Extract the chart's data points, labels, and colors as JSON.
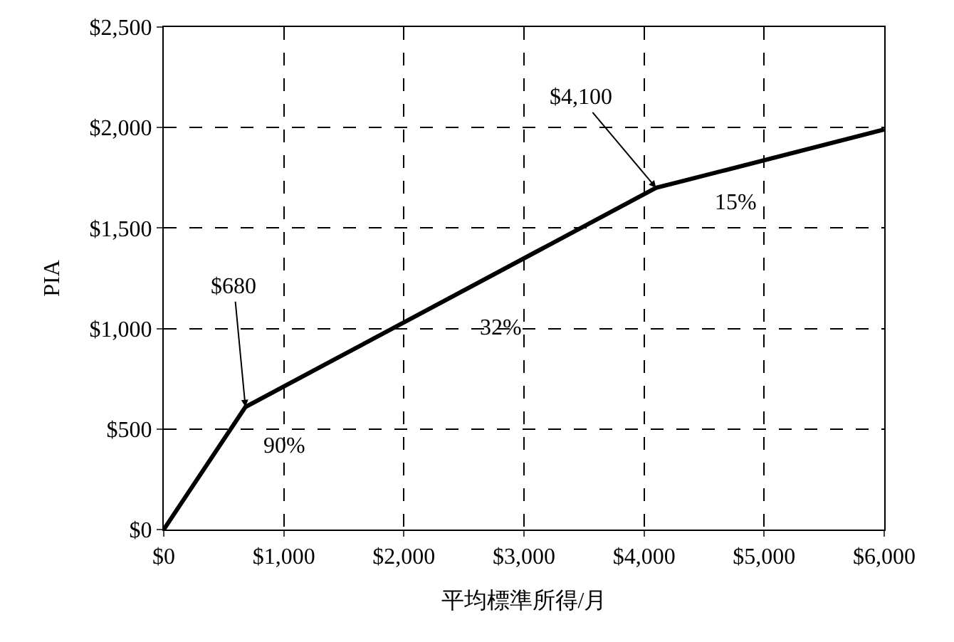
{
  "chart_data": {
    "type": "line",
    "xlabel": "平均標準所得/月",
    "ylabel": "PIA",
    "x": [
      0,
      680,
      4100,
      6000
    ],
    "series": [
      {
        "color": "#000000",
        "values": [
          0,
          610,
          1700,
          1990
        ]
      }
    ],
    "xlim": [
      0,
      6000
    ],
    "xticks": [
      {
        "value": 0,
        "label": "$0"
      },
      {
        "value": 1000,
        "label": "$1,000"
      },
      {
        "value": 2000,
        "label": "$2,000"
      },
      {
        "value": 3000,
        "label": "$3,000"
      },
      {
        "value": 4000,
        "label": "$4,000"
      },
      {
        "value": 5000,
        "label": "$5,000"
      },
      {
        "value": 6000,
        "label": "$6,000"
      }
    ],
    "ylim": [
      0,
      2500
    ],
    "yticks": [
      {
        "value": 0,
        "label": "$0"
      },
      {
        "value": 500,
        "label": "$500"
      },
      {
        "value": 1000,
        "label": "$1,000"
      },
      {
        "value": 1500,
        "label": "$1,500"
      },
      {
        "value": 2000,
        "label": "$2,000"
      },
      {
        "value": 2500,
        "label": "$2,500"
      }
    ],
    "grid": true,
    "legend": false,
    "marker": "none",
    "line_style": "solid",
    "annotations": [
      {
        "text": "$680",
        "x": 680,
        "y": 610
      },
      {
        "text": "$4,100",
        "x": 4100,
        "y": 1700
      },
      "90%",
      "32%",
      "15%"
    ]
  }
}
